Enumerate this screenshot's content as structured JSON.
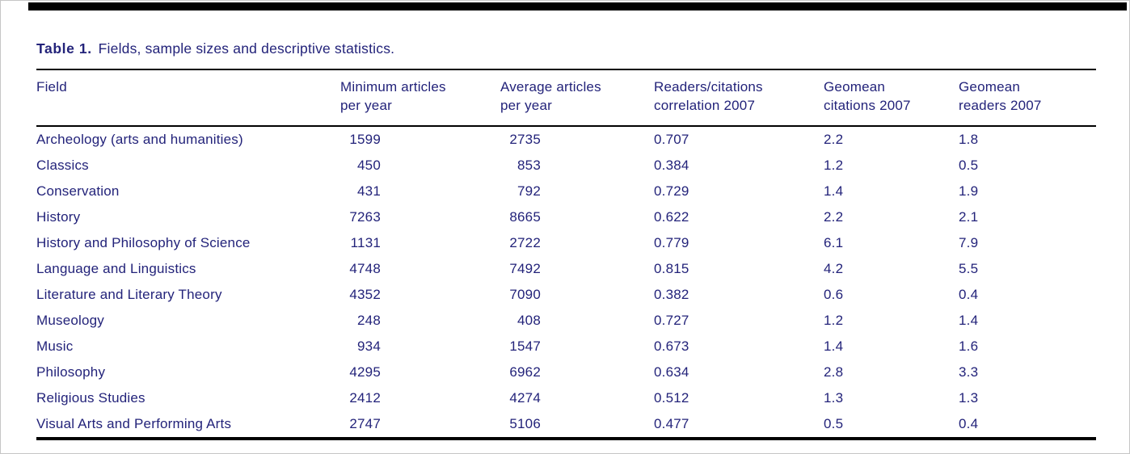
{
  "page": {
    "caption_label": "Table 1.",
    "caption_text": "Fields, sample sizes and descriptive statistics."
  },
  "colors": {
    "text": "#23237a",
    "rules": "#000000",
    "background": "#ffffff"
  },
  "table": {
    "columns": [
      {
        "label": "Field",
        "align": "left"
      },
      {
        "label": "Minimum articles\nper year",
        "align": "num"
      },
      {
        "label": "Average articles\nper year",
        "align": "num"
      },
      {
        "label": "Readers/citations\ncorrelation 2007",
        "align": "left"
      },
      {
        "label": "Geomean\ncitations 2007",
        "align": "left"
      },
      {
        "label": "Geomean\nreaders 2007",
        "align": "left"
      }
    ],
    "rows": [
      [
        "Archeology (arts and humanities)",
        "1599",
        "2735",
        "0.707",
        "2.2",
        "1.8"
      ],
      [
        "Classics",
        "450",
        "853",
        "0.384",
        "1.2",
        "0.5"
      ],
      [
        "Conservation",
        "431",
        "792",
        "0.729",
        "1.4",
        "1.9"
      ],
      [
        "History",
        "7263",
        "8665",
        "0.622",
        "2.2",
        "2.1"
      ],
      [
        "History and Philosophy of Science",
        "1131",
        "2722",
        "0.779",
        "6.1",
        "7.9"
      ],
      [
        "Language and Linguistics",
        "4748",
        "7492",
        "0.815",
        "4.2",
        "5.5"
      ],
      [
        "Literature and Literary Theory",
        "4352",
        "7090",
        "0.382",
        "0.6",
        "0.4"
      ],
      [
        "Museology",
        "248",
        "408",
        "0.727",
        "1.2",
        "1.4"
      ],
      [
        "Music",
        "934",
        "1547",
        "0.673",
        "1.4",
        "1.6"
      ],
      [
        "Philosophy",
        "4295",
        "6962",
        "0.634",
        "2.8",
        "3.3"
      ],
      [
        "Religious Studies",
        "2412",
        "4274",
        "0.512",
        "1.3",
        "1.3"
      ],
      [
        "Visual Arts and Performing Arts",
        "2747",
        "5106",
        "0.477",
        "0.5",
        "0.4"
      ]
    ]
  }
}
